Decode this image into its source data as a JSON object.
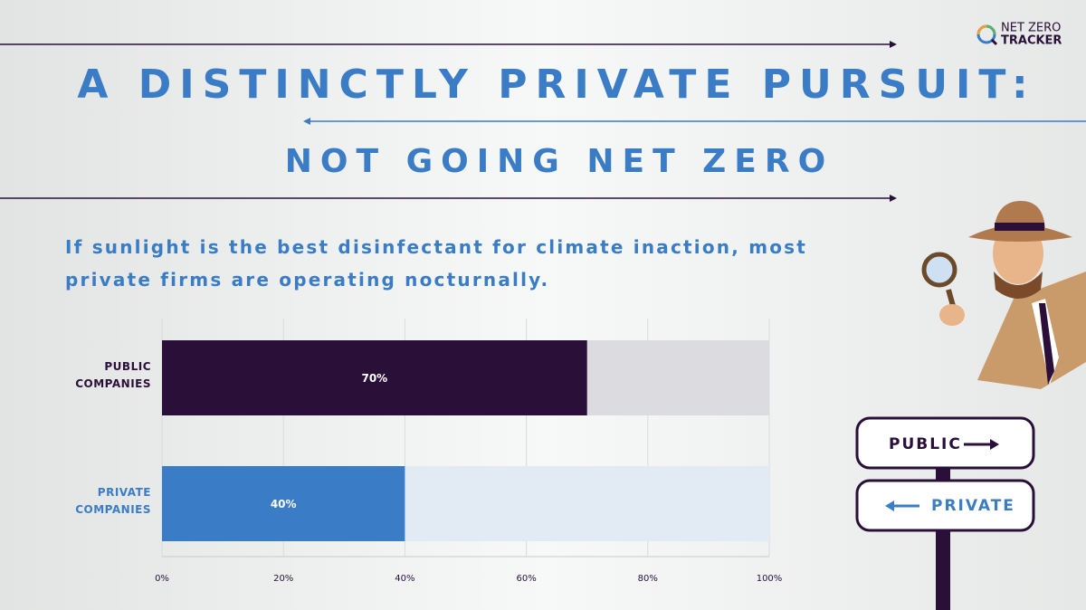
{
  "logo": {
    "line1": "NET ZERO",
    "line2": "TRACKER"
  },
  "signs": [
    "PUBLIC",
    "PRIVATE"
  ],
  "chart_data": {
    "type": "bar",
    "orientation": "horizontal",
    "title": "A DISTINCTLY PRIVATE PURSUIT:",
    "subtitle": "NOT GOING NET ZERO",
    "caption": "If sunlight is the best disinfectant for climate inaction, most private firms are operating nocturnally.",
    "categories": [
      "PUBLIC COMPANIES",
      "PRIVATE COMPANIES"
    ],
    "values": [
      70,
      40
    ],
    "value_labels": [
      "70%",
      "40%"
    ],
    "colors": [
      "#2a1039",
      "#3a7cc5"
    ],
    "xlim": [
      0,
      100
    ],
    "xticks": [
      {
        "value": 0,
        "label": "0%"
      },
      {
        "value": 20,
        "label": "20%"
      },
      {
        "value": 40,
        "label": "40%"
      },
      {
        "value": 60,
        "label": "60%"
      },
      {
        "value": 80,
        "label": "80%"
      },
      {
        "value": 100,
        "label": "100%"
      }
    ],
    "grid": true
  }
}
